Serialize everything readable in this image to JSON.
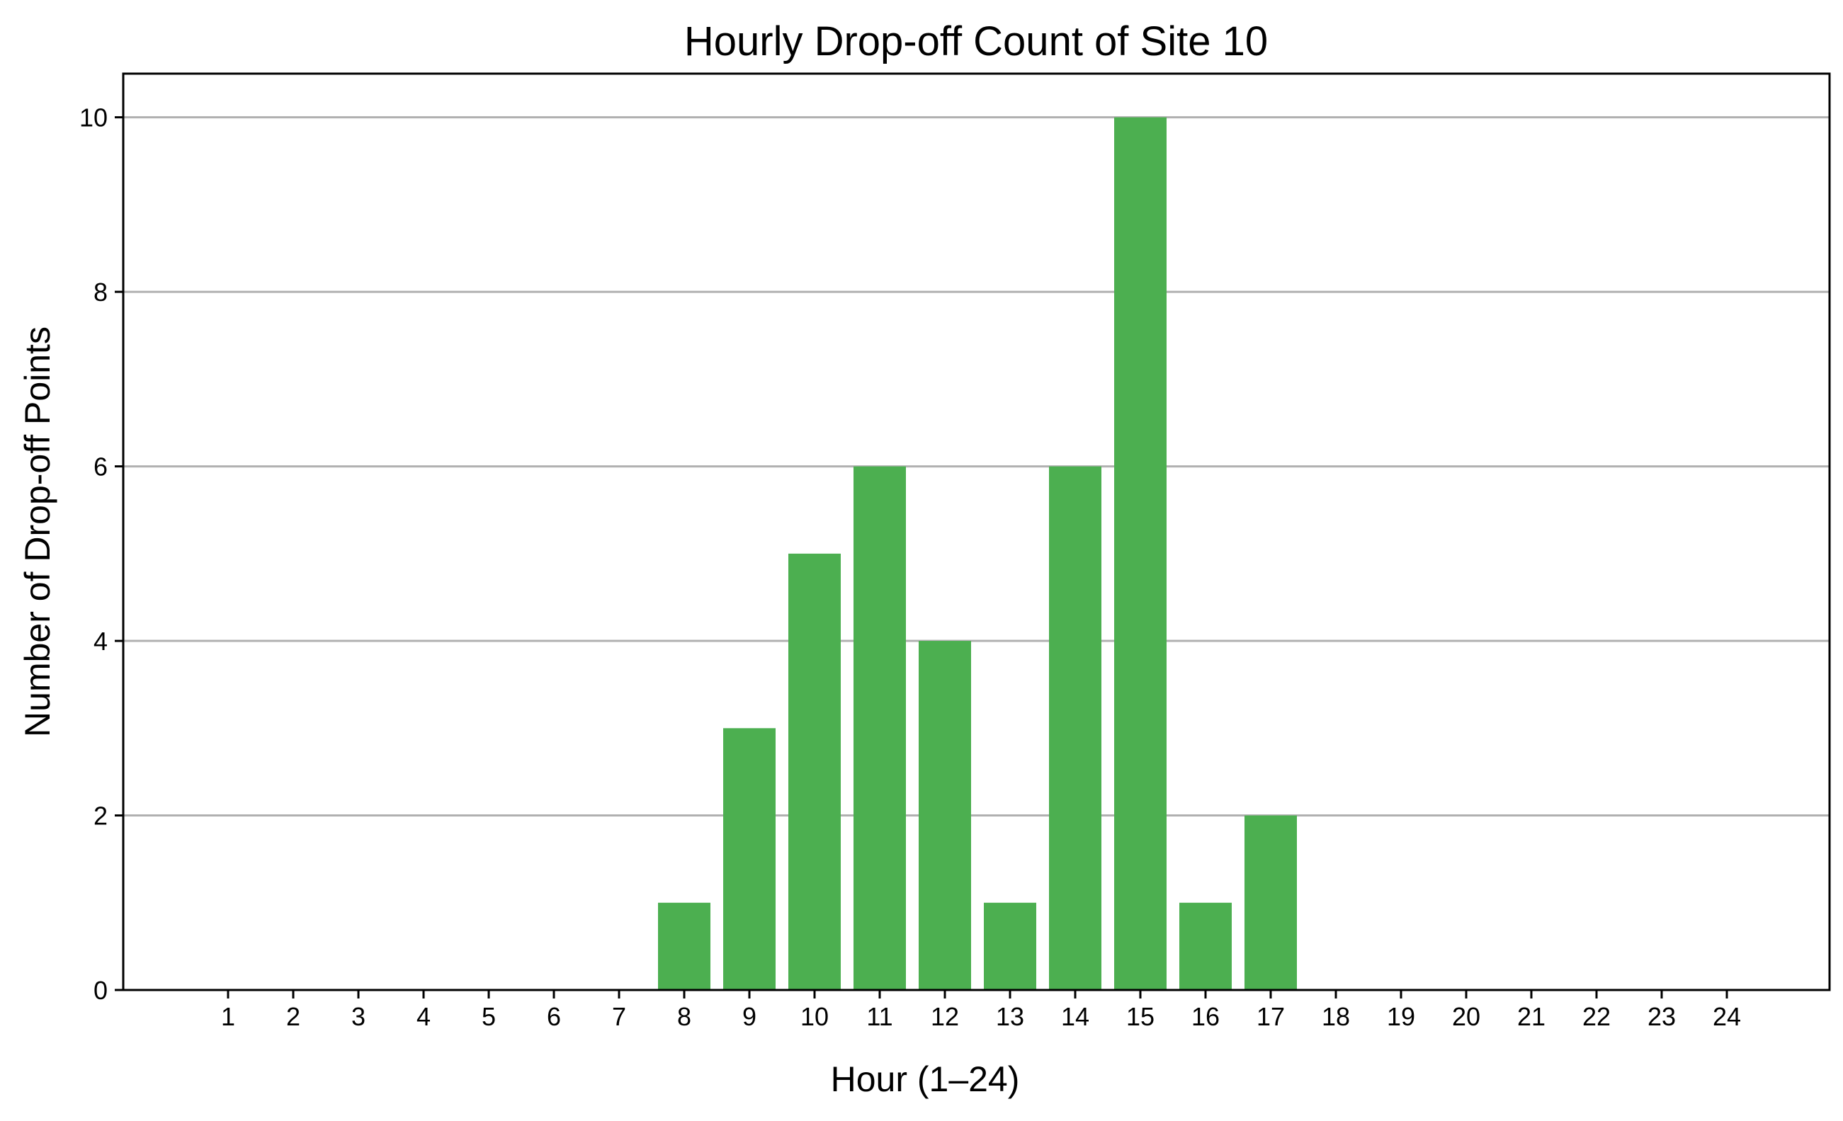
{
  "chart_data": {
    "type": "bar",
    "title": "Hourly Drop-off Count of Site 10",
    "xlabel": "Hour (1–24)",
    "ylabel": "Number of Drop-off Points",
    "categories": [
      "1",
      "2",
      "3",
      "4",
      "5",
      "6",
      "7",
      "8",
      "9",
      "10",
      "11",
      "12",
      "13",
      "14",
      "15",
      "16",
      "17",
      "18",
      "19",
      "20",
      "21",
      "22",
      "23",
      "24"
    ],
    "values": [
      0,
      0,
      0,
      0,
      0,
      0,
      0,
      1,
      3,
      5,
      6,
      4,
      1,
      6,
      10,
      1,
      2,
      0,
      0,
      0,
      0,
      0,
      0,
      0
    ],
    "ylim": [
      0,
      10.5
    ],
    "yticks": [
      "0",
      "2",
      "4",
      "6",
      "8",
      "10"
    ],
    "grid": "horizontal",
    "bar_color": "#4caf50",
    "grid_color": "#b0b0b0"
  }
}
